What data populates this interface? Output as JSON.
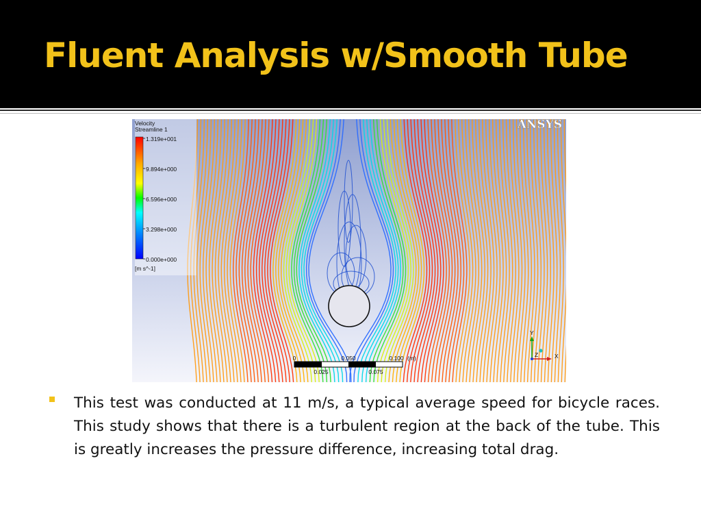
{
  "slide": {
    "title": "Fluent Analysis w/Smooth Tube",
    "bullets": [
      "This test was conducted at 11 m/s, a typical average speed for bicycle races. This study shows that there is a turbulent region at the back of the tube. This is greatly increases the pressure difference, increasing total drag."
    ],
    "accent_color": "#f2c21a",
    "header_background": "#000000"
  },
  "figure": {
    "logo": "ANSYS",
    "legend": {
      "title_line1": "Velocity",
      "title_line2": "Streamline 1",
      "labels": [
        "1.319e+001",
        "9.894e+000",
        "6.596e+000",
        "3.298e+000",
        "0.000e+000"
      ],
      "unit": "[m s^-1]"
    },
    "scale_bar": {
      "labels_top": [
        "0",
        "0.050",
        "0.100"
      ],
      "unit": "(m)",
      "labels_bottom": [
        "0.025",
        "0.075"
      ]
    },
    "axes": {
      "y": "Y",
      "x": "X",
      "z": "Z"
    }
  }
}
